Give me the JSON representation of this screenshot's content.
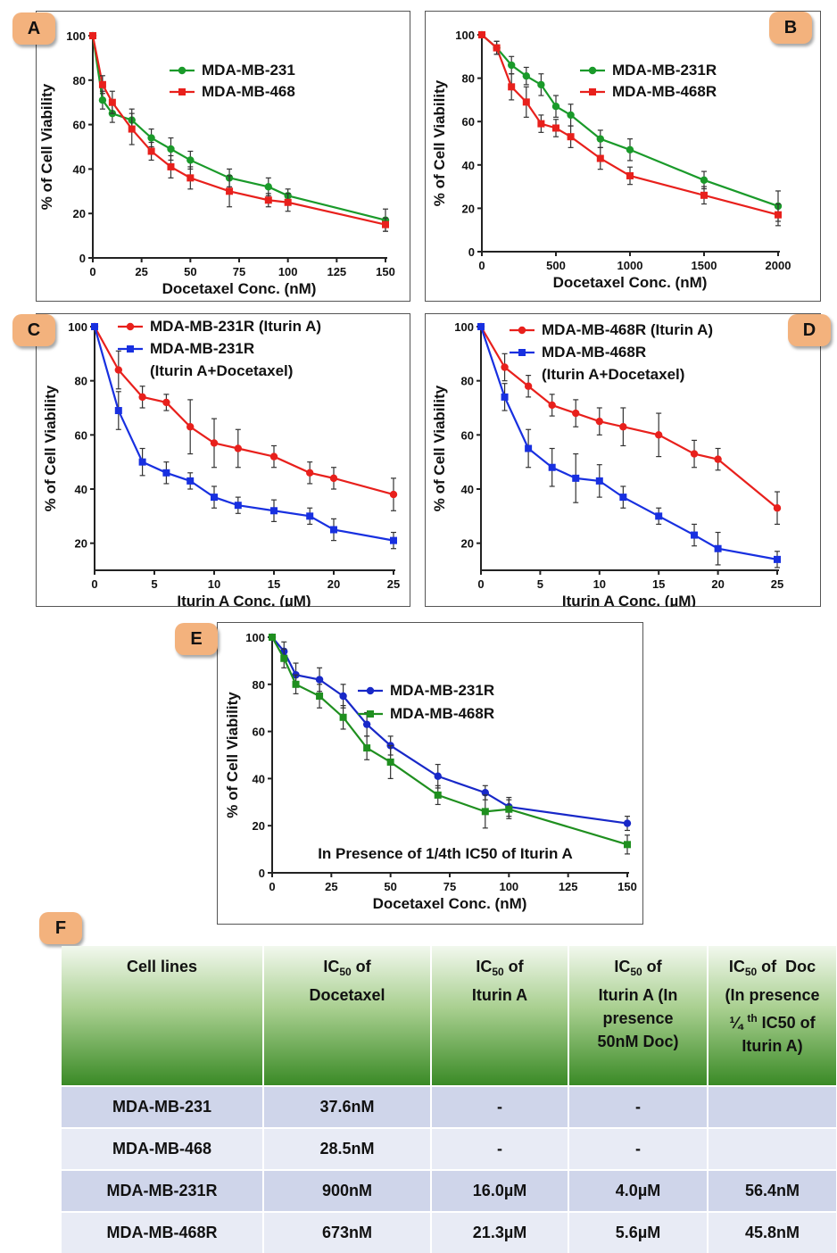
{
  "figure": {
    "panels": [
      {
        "letter": "A"
      },
      {
        "letter": "B"
      },
      {
        "letter": "C"
      },
      {
        "letter": "D"
      },
      {
        "letter": "E"
      }
    ],
    "table_letter": "F"
  },
  "chart_data": [
    {
      "id": "A",
      "type": "line",
      "xlabel": "Docetaxel Conc. (nM)",
      "ylabel": "% of Cell Viability",
      "xlim": [
        0,
        150
      ],
      "ylim": [
        0,
        100
      ],
      "xticks": [
        0,
        25,
        50,
        75,
        100,
        125,
        150
      ],
      "yticks": [
        0,
        20,
        40,
        60,
        80,
        100
      ],
      "annotation": "",
      "series": [
        {
          "name": "MDA-MB-231",
          "color": "#1a9a2a",
          "marker": "circle",
          "x": [
            0,
            5,
            10,
            20,
            30,
            40,
            50,
            70,
            90,
            100,
            150
          ],
          "y": [
            100,
            71,
            65,
            62,
            54,
            49,
            44,
            36,
            32,
            28,
            17
          ],
          "err": [
            0,
            4,
            4,
            5,
            4,
            5,
            4,
            4,
            4,
            3,
            5
          ]
        },
        {
          "name": "MDA-MB-468",
          "color": "#e8201c",
          "marker": "square",
          "x": [
            0,
            5,
            10,
            20,
            30,
            40,
            50,
            70,
            90,
            100,
            150
          ],
          "y": [
            100,
            78,
            70,
            58,
            48,
            41,
            36,
            30,
            26,
            25,
            15
          ],
          "err": [
            0,
            4,
            5,
            7,
            4,
            5,
            5,
            7,
            3,
            4,
            3
          ]
        }
      ]
    },
    {
      "id": "B",
      "type": "line",
      "xlabel": "Docetaxel Conc. (nM)",
      "ylabel": "% of Cell Viability",
      "xlim": [
        0,
        2000
      ],
      "ylim": [
        0,
        100
      ],
      "xticks": [
        0,
        500,
        1000,
        1500,
        2000
      ],
      "yticks": [
        0,
        20,
        40,
        60,
        80,
        100
      ],
      "annotation": "",
      "series": [
        {
          "name": "MDA-MB-231R",
          "color": "#1a9a2a",
          "marker": "circle",
          "x": [
            0,
            100,
            200,
            300,
            400,
            500,
            600,
            800,
            1000,
            1500,
            2000
          ],
          "y": [
            100,
            94,
            86,
            81,
            77,
            67,
            63,
            52,
            47,
            33,
            21
          ],
          "err": [
            0,
            3,
            4,
            4,
            5,
            5,
            5,
            4,
            5,
            4,
            7
          ]
        },
        {
          "name": "MDA-MB-468R",
          "color": "#e8201c",
          "marker": "square",
          "x": [
            0,
            100,
            200,
            300,
            400,
            500,
            600,
            800,
            1000,
            1500,
            2000
          ],
          "y": [
            100,
            94,
            76,
            69,
            59,
            57,
            53,
            43,
            35,
            26,
            17
          ],
          "err": [
            0,
            3,
            6,
            7,
            4,
            4,
            5,
            5,
            4,
            4,
            5
          ]
        }
      ]
    },
    {
      "id": "C",
      "type": "line",
      "xlabel": "Iturin A Conc. (µM)",
      "ylabel": "% of Cell Viability",
      "xlim": [
        0,
        25
      ],
      "ylim": [
        10,
        100
      ],
      "xticks": [
        0,
        5,
        10,
        15,
        20,
        25
      ],
      "yticks": [
        20,
        40,
        60,
        80,
        100
      ],
      "annotation": "",
      "legend_line2": "(Iturin A+Docetaxel)",
      "series": [
        {
          "name": "MDA-MB-231R (Iturin A)",
          "color": "#e8201c",
          "marker": "circle",
          "x": [
            0,
            2,
            4,
            6,
            8,
            10,
            12,
            15,
            18,
            20,
            25
          ],
          "y": [
            100,
            84,
            74,
            72,
            63,
            57,
            55,
            52,
            46,
            44,
            38
          ],
          "err": [
            0,
            7,
            4,
            3,
            10,
            9,
            7,
            4,
            4,
            4,
            6
          ]
        },
        {
          "name": "MDA-MB-231R",
          "color": "#1830e0",
          "marker": "square",
          "x": [
            0,
            2,
            4,
            6,
            8,
            10,
            12,
            15,
            18,
            20,
            25
          ],
          "y": [
            100,
            69,
            50,
            46,
            43,
            37,
            34,
            32,
            30,
            25,
            21
          ],
          "err": [
            0,
            7,
            5,
            4,
            3,
            4,
            3,
            4,
            3,
            4,
            3
          ]
        }
      ]
    },
    {
      "id": "D",
      "type": "line",
      "xlabel": "Iturin A Conc. (µM)",
      "ylabel": "% of Cell Viability",
      "xlim": [
        0,
        25
      ],
      "ylim": [
        10,
        100
      ],
      "xticks": [
        0,
        5,
        10,
        15,
        20,
        25
      ],
      "yticks": [
        20,
        40,
        60,
        80,
        100
      ],
      "annotation": "",
      "legend_line2": "(Iturin A+Docetaxel)",
      "series": [
        {
          "name": "MDA-MB-468R (Iturin A)",
          "color": "#e8201c",
          "marker": "circle",
          "x": [
            0,
            2,
            4,
            6,
            8,
            10,
            12,
            15,
            18,
            20,
            25
          ],
          "y": [
            100,
            85,
            78,
            71,
            68,
            65,
            63,
            60,
            53,
            51,
            33
          ],
          "err": [
            0,
            5,
            4,
            4,
            5,
            5,
            7,
            8,
            5,
            4,
            6
          ]
        },
        {
          "name": "MDA-MB-468R",
          "color": "#1830e0",
          "marker": "square",
          "x": [
            0,
            2,
            4,
            6,
            8,
            10,
            12,
            15,
            18,
            20,
            25
          ],
          "y": [
            100,
            74,
            55,
            48,
            44,
            43,
            37,
            30,
            23,
            18,
            14
          ],
          "err": [
            0,
            5,
            7,
            7,
            9,
            6,
            4,
            3,
            4,
            6,
            3
          ]
        }
      ]
    },
    {
      "id": "E",
      "type": "line",
      "xlabel": "Docetaxel Conc. (nM)",
      "ylabel": "% of Cell Viability",
      "xlim": [
        0,
        150
      ],
      "ylim": [
        0,
        100
      ],
      "xticks": [
        0,
        25,
        50,
        75,
        100,
        125,
        150
      ],
      "yticks": [
        0,
        20,
        40,
        60,
        80,
        100
      ],
      "annotation": "In Presence of 1/4th IC50 of Iturin A",
      "series": [
        {
          "name": "MDA-MB-231R",
          "color": "#1828c8",
          "marker": "circle",
          "x": [
            0,
            5,
            10,
            20,
            30,
            40,
            50,
            70,
            90,
            100,
            150
          ],
          "y": [
            100,
            94,
            84,
            82,
            75,
            63,
            54,
            41,
            34,
            28,
            21
          ],
          "err": [
            0,
            4,
            5,
            5,
            5,
            5,
            4,
            5,
            3,
            4,
            3
          ]
        },
        {
          "name": "MDA-MB-468R",
          "color": "#1f8f1f",
          "marker": "square",
          "x": [
            0,
            5,
            10,
            20,
            30,
            40,
            50,
            70,
            90,
            100,
            150
          ],
          "y": [
            100,
            91,
            80,
            75,
            66,
            53,
            47,
            33,
            26,
            27,
            12
          ],
          "err": [
            0,
            4,
            4,
            5,
            5,
            5,
            7,
            4,
            7,
            4,
            4
          ]
        }
      ]
    }
  ],
  "table": {
    "headers": [
      "Cell lines",
      "IC50 of Docetaxel",
      "IC50 of Iturin A",
      "IC50 of Iturin A (In presence 50nM Doc)",
      "IC50 of Doc (In presence ¼ th IC50 of Iturin A)"
    ],
    "rows": [
      [
        "MDA-MB-231",
        "37.6nM",
        "-",
        "-",
        ""
      ],
      [
        "MDA-MB-468",
        "28.5nM",
        "-",
        "-",
        ""
      ],
      [
        "MDA-MB-231R",
        "900nM",
        "16.0µM",
        "4.0µM",
        "56.4nM"
      ],
      [
        "MDA-MB-468R",
        "673nM",
        "21.3µM",
        "5.6µM",
        "45.8nM"
      ]
    ]
  }
}
